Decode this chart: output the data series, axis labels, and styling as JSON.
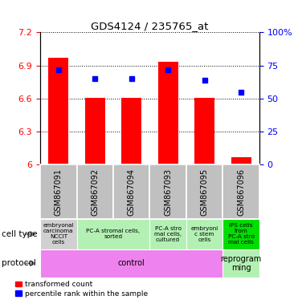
{
  "title": "GDS4124 / 235765_at",
  "samples": [
    "GSM867091",
    "GSM867092",
    "GSM867094",
    "GSM867093",
    "GSM867095",
    "GSM867096"
  ],
  "bar_values": [
    6.97,
    6.61,
    6.61,
    6.93,
    6.61,
    6.07
  ],
  "bar_bottom": 6.0,
  "percentile_values": [
    72,
    65,
    65,
    72,
    64,
    55
  ],
  "ylim_left": [
    6.0,
    7.2
  ],
  "ylim_right": [
    0,
    100
  ],
  "yticks_left": [
    6.0,
    6.3,
    6.6,
    6.9,
    7.2
  ],
  "ytick_labels_left": [
    "6",
    "6.3",
    "6.6",
    "6.9",
    "7.2"
  ],
  "yticks_right": [
    0,
    25,
    50,
    75,
    100
  ],
  "ytick_labels_right": [
    "0",
    "25",
    "50",
    "75",
    "100%"
  ],
  "bar_color": "#FF0000",
  "dot_color": "#0000FF",
  "gsm_bg_color": "#c0c0c0",
  "cell_type_data": [
    [
      0,
      1,
      "embryonal\ncarcinoma\nNCCIT\ncells",
      "#d0d0d0"
    ],
    [
      1,
      3,
      "PC-A stromal cells,\nsorted",
      "#b3f0b3"
    ],
    [
      3,
      4,
      "PC-A stro\nmal cells,\ncultured",
      "#b3f0b3"
    ],
    [
      4,
      5,
      "embryoni\nc stem\ncells",
      "#b3f0b3"
    ],
    [
      5,
      6,
      "iPS cells\nfrom\nPC-A stro\nmal cells",
      "#00dd00"
    ]
  ],
  "protocol_data": [
    [
      0,
      5,
      "control",
      "#ee82ee"
    ],
    [
      5,
      6,
      "reprogram\nming",
      "#b3f0b3"
    ]
  ]
}
